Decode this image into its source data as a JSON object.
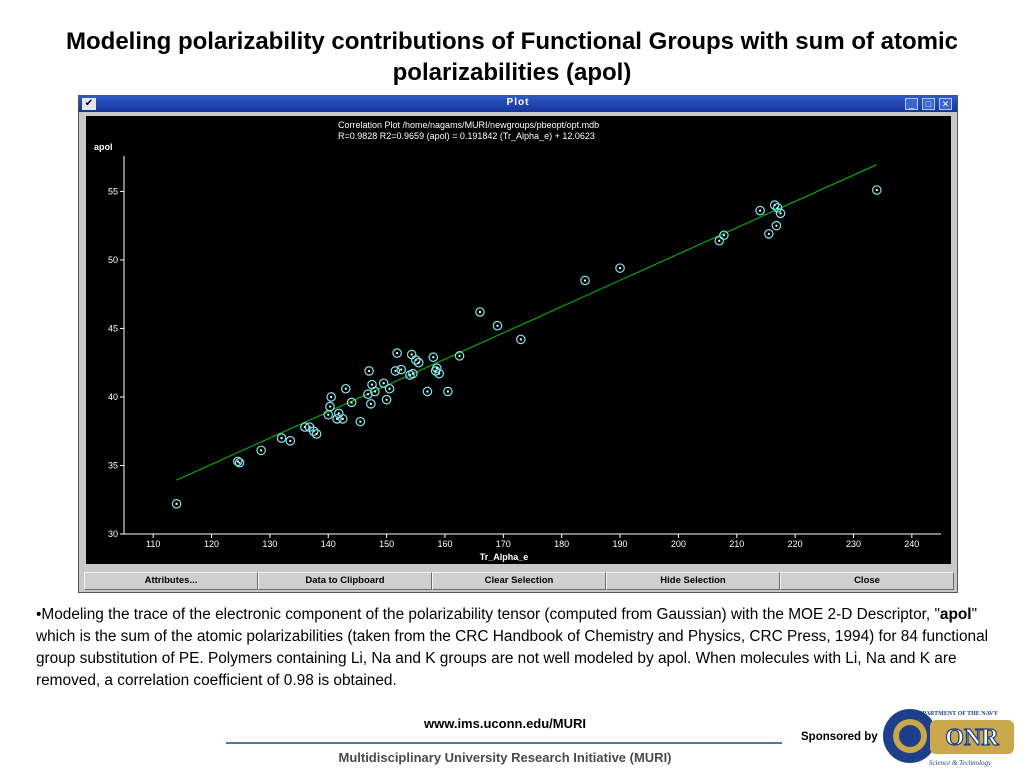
{
  "slide": {
    "title": "Modeling polarizability contributions of Functional Groups with sum of atomic polarizabilities (apol)"
  },
  "window": {
    "title": "Plot",
    "controls": [
      "_",
      "□",
      "✕"
    ]
  },
  "chart_data": {
    "type": "scatter",
    "title": "Correlation Plot /home/nagams/MURI/newgroups/pbeopt/opt.mdb",
    "subtitle": "R=0.9828 R2=0.9659    (apol) = 0.191842 (Tr_Alpha_e) + 12.0623",
    "xlabel": "Tr_Alpha_e",
    "ylabel": "apol",
    "xlim": [
      105,
      245
    ],
    "ylim": [
      30,
      57
    ],
    "xticks": [
      110,
      120,
      130,
      140,
      150,
      160,
      170,
      180,
      190,
      200,
      210,
      220,
      230,
      240
    ],
    "yticks": [
      30,
      35,
      40,
      45,
      50,
      55
    ],
    "fit": {
      "slope": 0.191842,
      "intercept": 12.0623,
      "x_range": [
        114,
        234
      ]
    },
    "colors": {
      "background": "#000000",
      "points": "#7fe6f0",
      "fit_line": "#00c000",
      "axes": "#ffffff",
      "text": "#ffffff"
    },
    "x": [
      114,
      124.5,
      124.8,
      128.5,
      132,
      133.5,
      136,
      136.8,
      137.5,
      138,
      140,
      140.3,
      140.5,
      141.5,
      141.8,
      142.5,
      143,
      144,
      145.5,
      146.8,
      147,
      147.3,
      147.5,
      148,
      149.5,
      150,
      150.5,
      151.5,
      151.8,
      152.5,
      154,
      154.3,
      154.5,
      155,
      155.5,
      157,
      158,
      158.4,
      158.6,
      159,
      160.5,
      162.5,
      166,
      169,
      173,
      184,
      190,
      207,
      207.8,
      214,
      215.5,
      216.5,
      216.8,
      217,
      217.5,
      234
    ],
    "y": [
      32.2,
      35.3,
      35.2,
      36.1,
      37,
      36.8,
      37.8,
      37.8,
      37.5,
      37.3,
      38.7,
      39.3,
      40,
      38.4,
      38.8,
      38.4,
      40.6,
      39.6,
      38.2,
      40.2,
      41.9,
      39.5,
      40.9,
      40.4,
      41,
      39.8,
      40.6,
      41.9,
      43.2,
      42,
      41.6,
      43.1,
      41.7,
      42.7,
      42.5,
      40.4,
      42.9,
      41.9,
      42.1,
      41.7,
      40.4,
      43,
      46.2,
      45.2,
      44.2,
      48.5,
      49.4,
      51.4,
      51.8,
      53.6,
      51.9,
      54,
      52.5,
      53.8,
      53.4,
      55.1
    ]
  },
  "buttons": [
    "Attributes...",
    "Data to Clipboard",
    "Clear Selection",
    "Hide Selection",
    "Close"
  ],
  "description": {
    "before": "•Modeling the trace of the electronic component of the polarizability tensor (computed from Gaussian) with the MOE 2-D Descriptor, \"",
    "bold": "apol",
    "after": "\" which is the sum of the atomic polarizabilities (taken from the CRC Handbook of Chemistry and Physics, CRC Press, 1994) for 84 functional group substitution of PE. Polymers containing Li, Na and K groups are not well modeled by apol. When molecules with Li, Na and K are removed, a correlation coefficient of 0.98 is obtained."
  },
  "footer": {
    "url": "www.ims.uconn.edu/MURI",
    "program": "Multidisciplinary University Research Initiative (MURI)",
    "sponsor_label": "Sponsored by",
    "logo_text": "ONR",
    "logo_ring_top": "DEPARTMENT OF THE NAVY",
    "logo_ring_bottom": "Science & Technology"
  }
}
